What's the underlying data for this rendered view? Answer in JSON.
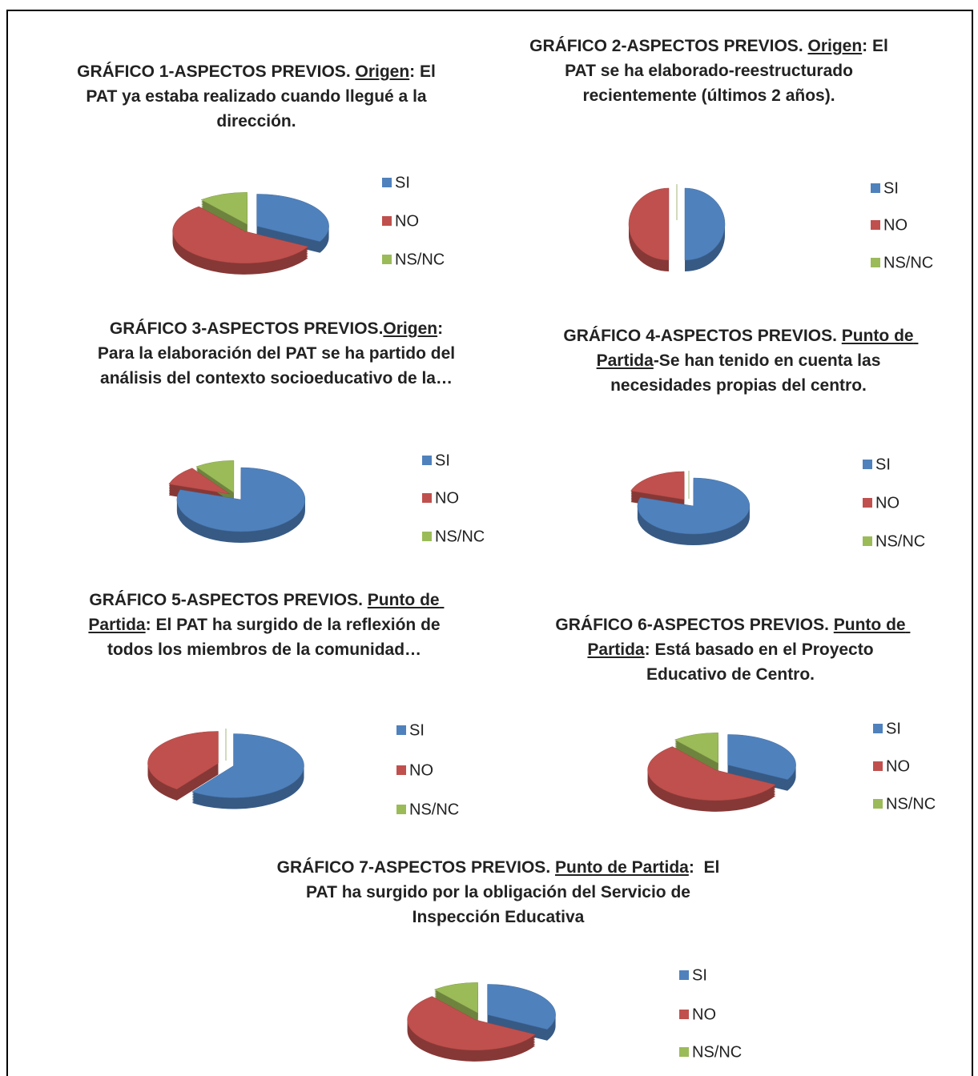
{
  "chart_data": [
    {
      "type": "pie",
      "title": [
        {
          "text": "GRÁFICO 1-ASPECTOS PREVIOS. "
        },
        {
          "text": "Origen",
          "underline": true
        },
        {
          "text": ": El PAT ya estaba realizado cuando llegué a la dirección."
        }
      ],
      "categories": [
        "SI",
        "NO",
        "NS/NC"
      ],
      "values": [
        33,
        56,
        11
      ],
      "colors": [
        "#4f81bd",
        "#c0504d",
        "#9bbb59"
      ]
    },
    {
      "type": "pie",
      "title": [
        {
          "text": "GRÁFICO 2-ASPECTOS PREVIOS. "
        },
        {
          "text": "Origen",
          "underline": true
        },
        {
          "text": ": El PAT se ha elaborado-reestructurado recientemente (últimos 2 años)."
        }
      ],
      "categories": [
        "SI",
        "NO",
        "NS/NC"
      ],
      "values": [
        50,
        50,
        0
      ],
      "colors": [
        "#4f81bd",
        "#c0504d",
        "#9bbb59"
      ]
    },
    {
      "type": "pie",
      "title": [
        {
          "text": "GRÁFICO 3-ASPECTOS PREVIOS."
        },
        {
          "text": "Origen",
          "underline": true
        },
        {
          "text": ": Para la elaboración del PAT se ha partido del análisis del contexto socioeducativo de la…"
        }
      ],
      "categories": [
        "SI",
        "NO",
        "NS/NC"
      ],
      "values": [
        80,
        10,
        10
      ],
      "colors": [
        "#4f81bd",
        "#c0504d",
        "#9bbb59"
      ]
    },
    {
      "type": "pie",
      "title": [
        {
          "text": "GRÁFICO 4-ASPECTOS PREVIOS. "
        },
        {
          "text": "Punto de Partida",
          "underline": true
        },
        {
          "text": "-Se han tenido en cuenta las necesidades propias del centro."
        }
      ],
      "categories": [
        "SI",
        "NO",
        "NS/NC"
      ],
      "values": [
        80,
        20,
        0
      ],
      "colors": [
        "#4f81bd",
        "#c0504d",
        "#9bbb59"
      ]
    },
    {
      "type": "pie",
      "title": [
        {
          "text": "GRÁFICO 5-ASPECTOS PREVIOS. "
        },
        {
          "text": "Punto de Partida",
          "underline": true
        },
        {
          "text": ": El PAT ha surgido de la reflexión de todos los miembros de la comunidad…"
        }
      ],
      "categories": [
        "SI",
        "NO",
        "NS/NC"
      ],
      "values": [
        60,
        40,
        0
      ],
      "colors": [
        "#4f81bd",
        "#c0504d",
        "#9bbb59"
      ]
    },
    {
      "type": "pie",
      "title": [
        {
          "text": "GRÁFICO 6-ASPECTOS PREVIOS. "
        },
        {
          "text": "Punto de Partida",
          "underline": true
        },
        {
          "text": ": Está basado en el Proyecto Educativo de Centro."
        }
      ],
      "categories": [
        "SI",
        "NO",
        "NS/NC"
      ],
      "values": [
        33,
        56,
        11
      ],
      "colors": [
        "#4f81bd",
        "#c0504d",
        "#9bbb59"
      ]
    },
    {
      "type": "pie",
      "title": [
        {
          "text": "GRÁFICO 7-ASPECTOS PREVIOS. "
        },
        {
          "text": "Punto de Partida",
          "underline": true
        },
        {
          "text": ":  El PAT ha surgido por la obligación del Servicio de Inspección Educativa"
        }
      ],
      "categories": [
        "SI",
        "NO",
        "NS/NC"
      ],
      "values": [
        33,
        56,
        11
      ],
      "colors": [
        "#4f81bd",
        "#c0504d",
        "#9bbb59"
      ]
    }
  ]
}
